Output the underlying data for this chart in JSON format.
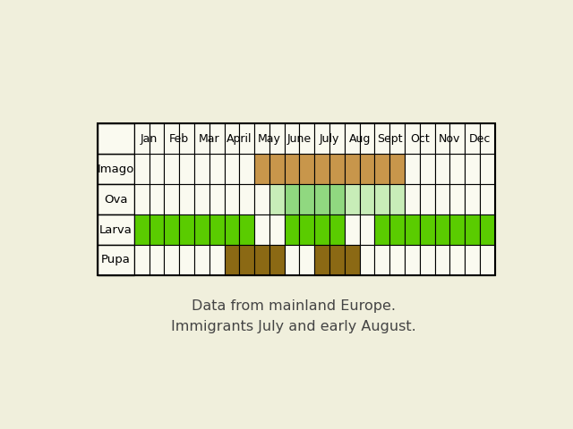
{
  "bg_color": "#F0EFDC",
  "months": [
    "Jan",
    "Feb",
    "Mar",
    "April",
    "May",
    "June",
    "July",
    "Aug",
    "Sept",
    "Oct",
    "Nov",
    "Dec"
  ],
  "stages": [
    "Imago",
    "Ova",
    "Larva",
    "Pupa"
  ],
  "colors": {
    "imago": "#C8964B",
    "ova_dark": "#90D880",
    "ova_light": "#C8EDB8",
    "larva": "#5ACC00",
    "pupa": "#8B6914",
    "white": "#FAFAF0"
  },
  "annotation_line1": "Data from mainland Europe.",
  "annotation_line2": "Immigrants July and early August.",
  "annotation_fontsize": 11.5,
  "annotation_color": "#444444"
}
